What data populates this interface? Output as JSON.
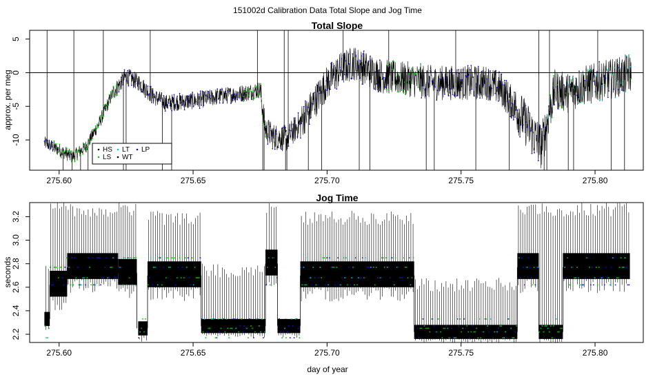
{
  "figure": {
    "title": "151002d   Calibration Data Total Slope and Jog Time",
    "xlabel": "day of year"
  },
  "colors": {
    "HS": "#000000",
    "LS": "#00c800",
    "LT": "#00c8c8",
    "WT": "#000000",
    "LP": "#1010c8",
    "line": "#000000"
  },
  "legend": {
    "labels": [
      "HS",
      "LS",
      "LT",
      "WT",
      "LP"
    ]
  },
  "chart_data": [
    {
      "type": "line",
      "title": "Total Slope",
      "xlabel": "",
      "ylabel": "approx. per meg",
      "xlim": [
        275.589,
        275.818
      ],
      "ylim": [
        -14.5,
        6.3
      ],
      "xticks": [
        275.6,
        275.65,
        275.7,
        275.75,
        275.8
      ],
      "xtick_labels": [
        "275.60",
        "275.65",
        "275.70",
        "275.75",
        "275.80"
      ],
      "yticks": [
        -10,
        -5,
        0,
        5
      ],
      "ytick_labels": [
        "-10",
        "-5",
        "0",
        "5"
      ],
      "hline": 0,
      "legend_position": "bottom-left",
      "trend_x": [
        275.595,
        275.6,
        275.605,
        275.61,
        275.615,
        275.62,
        275.625,
        275.63,
        275.635,
        275.64,
        275.65,
        275.66,
        275.67,
        275.675,
        275.677,
        275.68,
        275.685,
        275.69,
        275.695,
        275.7,
        275.705,
        275.71,
        275.715,
        275.72,
        275.73,
        275.74,
        275.75,
        275.76,
        275.765,
        275.77,
        275.775,
        275.78,
        275.785,
        275.79,
        275.795,
        275.8,
        275.805,
        275.81,
        275.813
      ],
      "trend_y": [
        -10.5,
        -11.5,
        -12.5,
        -11.0,
        -7.5,
        -3.0,
        -0.5,
        -1.5,
        -3.5,
        -4.5,
        -4.2,
        -3.5,
        -3.0,
        -2.5,
        -8.5,
        -9.5,
        -9.8,
        -7.5,
        -4.5,
        -1.5,
        0.5,
        1.5,
        0.5,
        -0.5,
        -1.0,
        -1.5,
        -1.5,
        -1.5,
        -2.5,
        -5.0,
        -8.0,
        -11.0,
        -2.5,
        -3.0,
        -2.0,
        -1.5,
        -1.0,
        -0.5,
        0.0
      ]
    },
    {
      "type": "line",
      "title": "Jog Time",
      "xlabel": "day of year",
      "ylabel": "seconds",
      "xlim": [
        275.589,
        275.818
      ],
      "ylim": [
        2.13,
        3.32
      ],
      "xticks": [
        275.6,
        275.65,
        275.7,
        275.75,
        275.8
      ],
      "xtick_labels": [
        "275.60",
        "275.65",
        "275.70",
        "275.75",
        "275.80"
      ],
      "yticks": [
        2.2,
        2.4,
        2.6,
        2.8,
        3.0,
        3.2
      ],
      "ytick_labels": [
        "2.2",
        "2.4",
        "2.6",
        "2.8",
        "3.0",
        "3.2"
      ],
      "segments": [
        {
          "x": [
            275.5945,
            275.5965
          ],
          "level": 2.33,
          "top": 2.85
        },
        {
          "x": [
            275.5965,
            275.603
          ],
          "level": 2.62,
          "top": 3.32
        },
        {
          "x": [
            275.603,
            275.622
          ],
          "level": 2.77,
          "top": 3.32
        },
        {
          "x": [
            275.622,
            275.629
          ],
          "level": 2.72,
          "top": 3.32
        },
        {
          "x": [
            275.6295,
            275.633
          ],
          "level": 2.25,
          "top": 2.25
        },
        {
          "x": [
            275.633,
            275.653
          ],
          "level": 2.7,
          "top": 3.25
        },
        {
          "x": [
            275.653,
            275.677
          ],
          "level": 2.27,
          "top": 2.8
        },
        {
          "x": [
            275.677,
            275.6815
          ],
          "level": 2.8,
          "top": 3.32
        },
        {
          "x": [
            275.6815,
            275.69
          ],
          "level": 2.27,
          "top": 2.35
        },
        {
          "x": [
            275.69,
            275.7325
          ],
          "level": 2.7,
          "top": 3.25
        },
        {
          "x": [
            275.7325,
            275.771
          ],
          "level": 2.22,
          "top": 2.68
        },
        {
          "x": [
            275.771,
            275.779
          ],
          "level": 2.77,
          "top": 3.32
        },
        {
          "x": [
            275.779,
            275.788
          ],
          "level": 2.22,
          "top": 3.32
        },
        {
          "x": [
            275.788,
            275.813
          ],
          "level": 2.77,
          "top": 3.32
        }
      ]
    }
  ]
}
